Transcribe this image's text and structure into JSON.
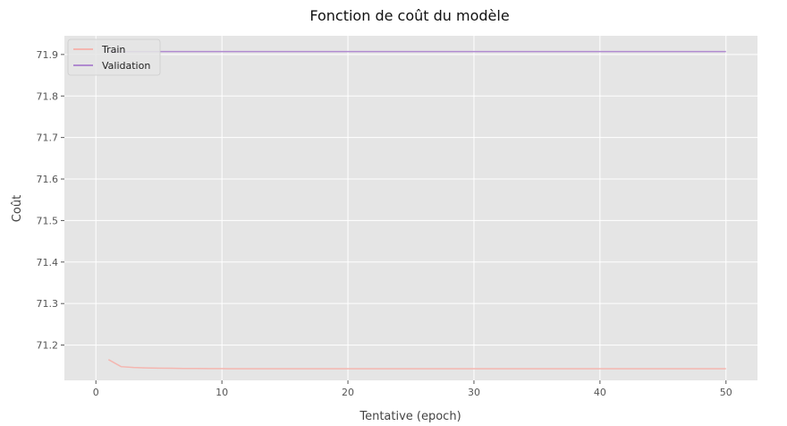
{
  "chart_data": {
    "type": "line",
    "title": "Fonction de coût du modèle",
    "xlabel": "Tentative (epoch)",
    "ylabel": "Coût",
    "xlim": [
      -2.5,
      52.5
    ],
    "ylim": [
      71.115,
      71.945
    ],
    "xticks": [
      "0",
      "10",
      "20",
      "30",
      "40",
      "50"
    ],
    "yticks": [
      "71.2",
      "71.3",
      "71.4",
      "71.5",
      "71.6",
      "71.7",
      "71.8",
      "71.9"
    ],
    "grid": true,
    "legend_position": "top-left",
    "x": [
      1,
      2,
      3,
      4,
      5,
      6,
      7,
      8,
      9,
      10,
      11,
      12,
      13,
      14,
      15,
      16,
      17,
      18,
      19,
      20,
      21,
      22,
      23,
      24,
      25,
      26,
      27,
      28,
      29,
      30,
      31,
      32,
      33,
      34,
      35,
      36,
      37,
      38,
      39,
      40,
      41,
      42,
      43,
      44,
      45,
      46,
      47,
      48,
      49,
      50
    ],
    "series": [
      {
        "name": "Train",
        "color": "#f4b6b0",
        "values": [
          71.165,
          71.148,
          71.146,
          71.145,
          71.1445,
          71.144,
          71.1437,
          71.1435,
          71.1433,
          71.1432,
          71.1431,
          71.143,
          71.143,
          71.143,
          71.143,
          71.143,
          71.143,
          71.143,
          71.143,
          71.143,
          71.143,
          71.143,
          71.143,
          71.143,
          71.143,
          71.143,
          71.143,
          71.143,
          71.143,
          71.143,
          71.143,
          71.143,
          71.143,
          71.143,
          71.143,
          71.143,
          71.143,
          71.143,
          71.143,
          71.143,
          71.143,
          71.143,
          71.143,
          71.143,
          71.143,
          71.143,
          71.143,
          71.143,
          71.143,
          71.143
        ]
      },
      {
        "name": "Validation",
        "color": "#b08ad0",
        "values": [
          71.907,
          71.907,
          71.907,
          71.907,
          71.907,
          71.907,
          71.907,
          71.907,
          71.907,
          71.907,
          71.907,
          71.907,
          71.907,
          71.907,
          71.907,
          71.907,
          71.907,
          71.907,
          71.907,
          71.907,
          71.907,
          71.907,
          71.907,
          71.907,
          71.907,
          71.907,
          71.907,
          71.907,
          71.907,
          71.907,
          71.907,
          71.907,
          71.907,
          71.907,
          71.907,
          71.907,
          71.907,
          71.907,
          71.907,
          71.907,
          71.907,
          71.907,
          71.907,
          71.907,
          71.907,
          71.907,
          71.907,
          71.907,
          71.907,
          71.907
        ]
      }
    ]
  },
  "colors": {
    "plot_background": "#e5e5e5",
    "grid": "#ffffff"
  }
}
